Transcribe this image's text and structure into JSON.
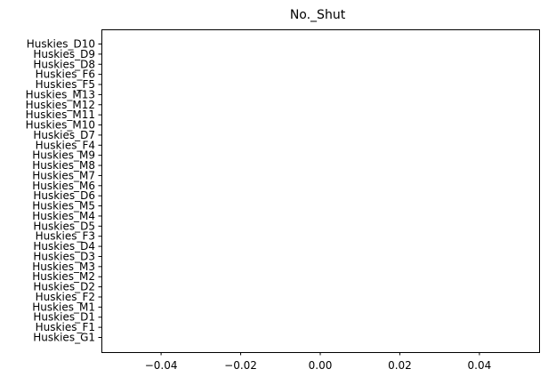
{
  "chart_data": {
    "type": "bar",
    "orientation": "horizontal",
    "title": "No._Shut",
    "xlabel": "",
    "ylabel": "",
    "categories": [
      "Huskies_G1",
      "Huskies_F1",
      "Huskies_D1",
      "Huskies_M1",
      "Huskies_F2",
      "Huskies_D2",
      "Huskies_M2",
      "Huskies_M3",
      "Huskies_D3",
      "Huskies_D4",
      "Huskies_F3",
      "Huskies_D5",
      "Huskies_M4",
      "Huskies_M5",
      "Huskies_D6",
      "Huskies_M6",
      "Huskies_M7",
      "Huskies_M8",
      "Huskies_M9",
      "Huskies_F4",
      "Huskies_D7",
      "Huskies_M10",
      "Huskies_M11",
      "Huskies_M12",
      "Huskies_M13",
      "Huskies_F5",
      "Huskies_F6",
      "Huskies_D8",
      "Huskies_D9",
      "Huskies_D10"
    ],
    "values": [
      0,
      0,
      0,
      0,
      0,
      0,
      0,
      0,
      0,
      0,
      0,
      0,
      0,
      0,
      0,
      0,
      0,
      0,
      0,
      0,
      0,
      0,
      0,
      0,
      0,
      0,
      0,
      0,
      0,
      0
    ],
    "xlim": [
      -0.055,
      0.055
    ],
    "xticks": [
      -0.04,
      -0.02,
      0.0,
      0.02,
      0.04
    ],
    "xtick_labels": [
      "−0.04",
      "−0.02",
      "0.00",
      "0.02",
      "0.04"
    ],
    "grid": false,
    "bar_color": "#1f77b4"
  }
}
